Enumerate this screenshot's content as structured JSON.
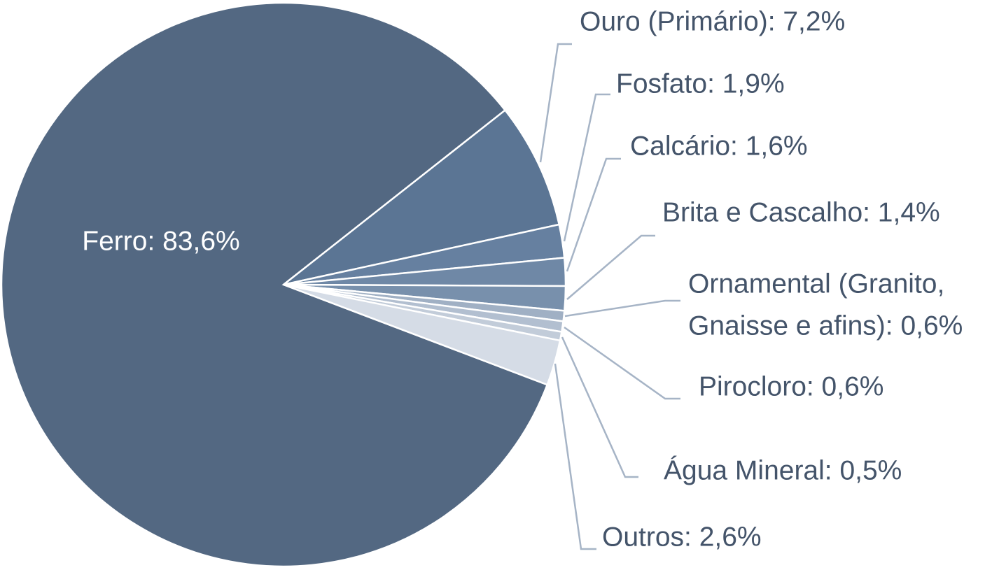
{
  "chart_data": {
    "type": "pie",
    "values": [
      83.6,
      7.2,
      1.9,
      1.6,
      1.4,
      0.6,
      0.6,
      0.5,
      2.6
    ],
    "value_labels": [
      "Ferro: 83,6%",
      "Ouro (Primário): 7,2%",
      "Fosfato: 1,9%",
      "Calcário: 1,6%",
      "Brita e Cascalho: 1,4%",
      [
        "Ornamental (Granito,",
        "Gnaisse e afins): 0,6%"
      ],
      "Pirocloro: 0,6%",
      "Água Mineral: 0,5%",
      "Outros: 2,6%"
    ],
    "colors": [
      "#536882",
      "#5b7594",
      "#6680a0",
      "#6f88a6",
      "#7890ac",
      "#a0b0c4",
      "#b2bfd0",
      "#c2ccd9",
      "#d5dce6"
    ]
  }
}
